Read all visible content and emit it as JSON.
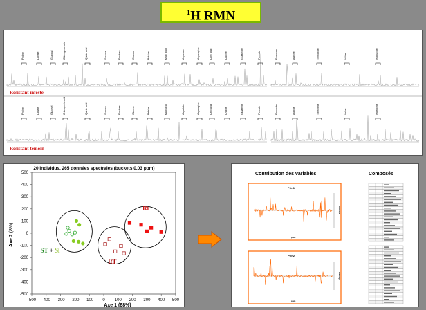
{
  "header": {
    "title_sup": "1",
    "title_main": "H RMN"
  },
  "spectra": {
    "label_top": "Résistant infesté",
    "label_bottom": "Résistant témoin",
    "annotations_top": [
      "Proline",
      "Lactate",
      "Glucosyl",
      "Chlorogenic acid",
      "Quinic acid",
      "Sucrose",
      "Fructose",
      "Glucose",
      "Betaine",
      "Malic acid",
      "Aspartate",
      "Asparagine",
      "Citric acid",
      "Choline",
      "Glutamine",
      "Formate",
      "Fumarate",
      "Alanine",
      "Threonine",
      "Valine",
      "Isoleucine"
    ],
    "annotations_bottom": [
      "Proline",
      "Lactate",
      "Glucosyl",
      "Chlorogenic acid",
      "Quinic acid",
      "Sucrose",
      "Fructose",
      "Glucose",
      "Betaine",
      "Malic acid",
      "Aspartate",
      "Asparagine",
      "Citric acid",
      "Choline",
      "Glutamine",
      "Formate",
      "Fumarate",
      "Alanine",
      "Threonine",
      "Valine",
      "Isoleucine"
    ]
  },
  "pca": {
    "title": "20 individus, 265 données spectrales (buckets 0.03 ppm)",
    "xlabel": "Axe 1 (68%)",
    "ylabel_main": "Axe 2",
    "ylabel_pct": "(8%)",
    "x_ticks": [
      "-500",
      "-400",
      "-300",
      "-200",
      "-100",
      "0",
      "100",
      "200",
      "300",
      "400",
      "500"
    ],
    "y_ticks": [
      "500",
      "400",
      "300",
      "200",
      "100",
      "0",
      "-100",
      "-200",
      "-300",
      "-400",
      "-500"
    ],
    "group_ri": "Ri",
    "group_rt": "RT",
    "group_st": "ST",
    "group_plus": " + ",
    "group_si": "Si"
  },
  "chart_data": {
    "type": "scatter",
    "title": "20 individus, 265 données spectrales (buckets 0.03 ppm)",
    "xlabel": "Axe 1 (68%)",
    "ylabel": "Axe 2 (8%)",
    "xlim": [
      -500,
      500
    ],
    "ylim": [
      -500,
      500
    ],
    "series": [
      {
        "name": "Ri",
        "color": "#ee1111",
        "marker": "square-filled",
        "points": [
          [
            180,
            85
          ],
          [
            260,
            70
          ],
          [
            330,
            45
          ],
          [
            400,
            10
          ],
          [
            300,
            15
          ]
        ]
      },
      {
        "name": "RT",
        "color": "#aa2222",
        "marker": "square-open",
        "points": [
          [
            40,
            -50
          ],
          [
            10,
            -90
          ],
          [
            80,
            -150
          ],
          [
            140,
            -165
          ],
          [
            120,
            -105
          ]
        ]
      },
      {
        "name": "ST",
        "color": "#33aa33",
        "marker": "circle-open",
        "points": [
          [
            -250,
            45
          ],
          [
            -240,
            20
          ],
          [
            -220,
            -10
          ],
          [
            -200,
            5
          ],
          [
            -260,
            -5
          ]
        ]
      },
      {
        "name": "Si",
        "color": "#88cc22",
        "marker": "circle-filled",
        "points": [
          [
            -190,
            100
          ],
          [
            -170,
            70
          ],
          [
            -175,
            -70
          ],
          [
            -145,
            -85
          ],
          [
            -210,
            -65
          ]
        ]
      }
    ]
  },
  "loadings": {
    "head_left": "Contribution des variables",
    "head_right": "Composés",
    "plot1_title": "Prin1",
    "plot2_title": "Prin2",
    "xaxis_label": "ppm",
    "yaxis_label": "loadings"
  },
  "colors": {
    "accent": "#ff6600",
    "title_bg": "#ffff33",
    "title_border": "#7ab800",
    "label_red": "#cc1111"
  }
}
